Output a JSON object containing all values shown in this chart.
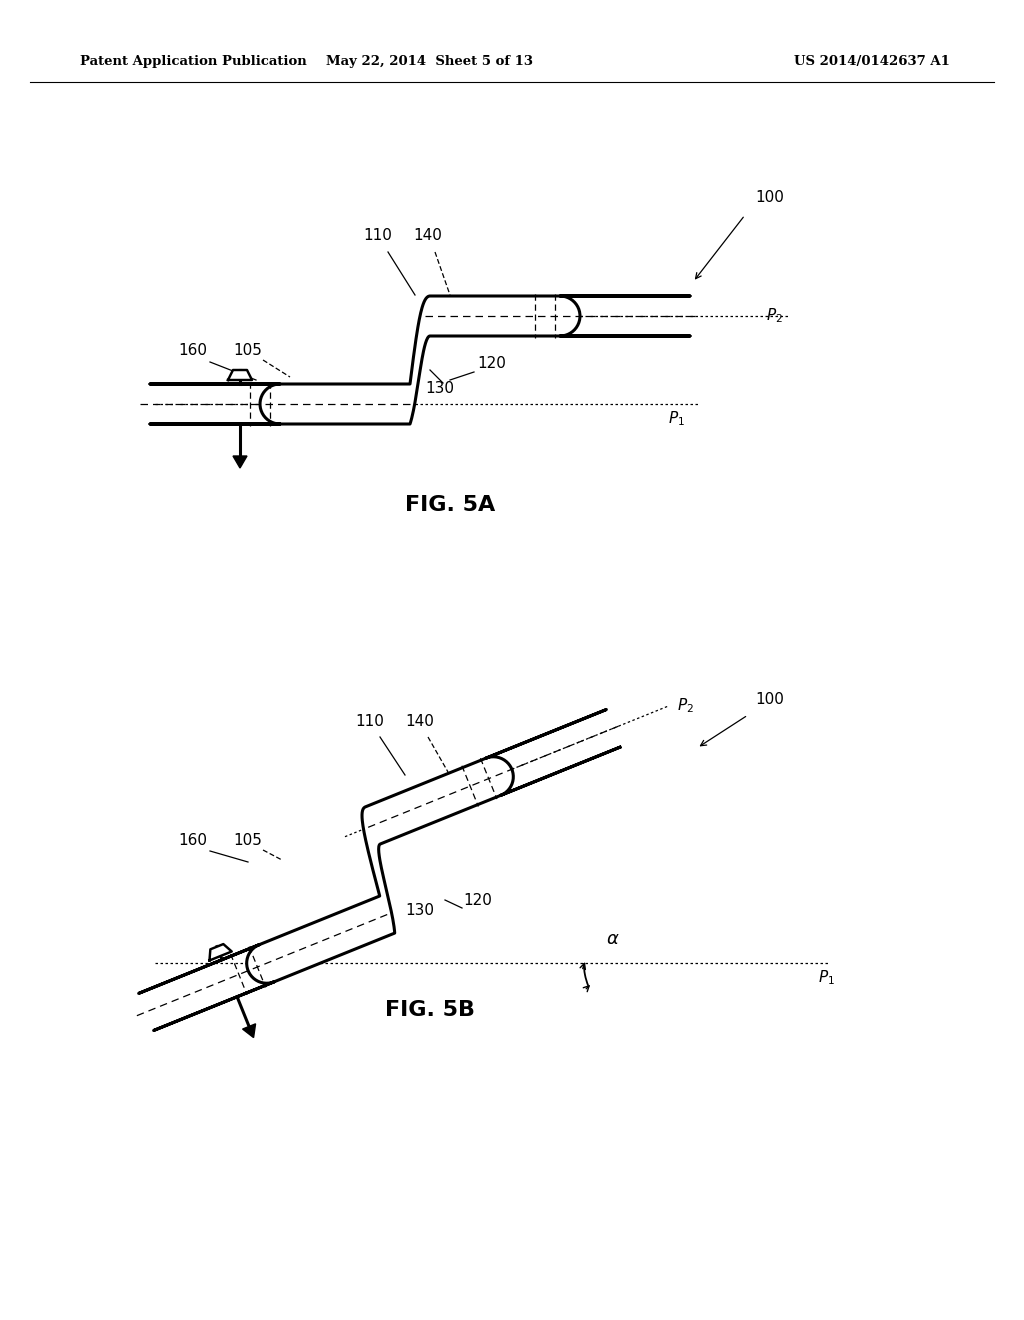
{
  "header_left": "Patent Application Publication",
  "header_center": "May 22, 2014  Sheet 5 of 13",
  "header_right": "US 2014/0142637 A1",
  "fig_a_label": "FIG. 5A",
  "fig_b_label": "FIG. 5B",
  "bg_color": "#ffffff",
  "line_color": "#000000",
  "lw": 2.2,
  "label_fs": 11,
  "title_fs": 16
}
